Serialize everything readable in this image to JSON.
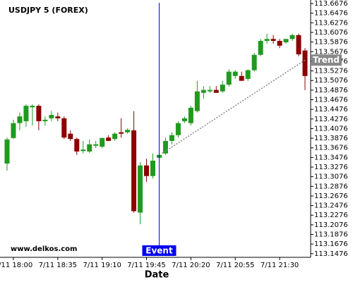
{
  "chart_data": {
    "type": "candlestick",
    "title": "USDJPY 5 (FOREX)",
    "x_label": "Date",
    "watermark": "www.delkos.com",
    "categories": [
      null,
      "7/11 18:00",
      null,
      null,
      null,
      null,
      null,
      null,
      "7/11 18:35",
      null,
      null,
      null,
      null,
      null,
      null,
      "7/11 19:10",
      null,
      null,
      null,
      null,
      null,
      null,
      "7/11 19:45",
      null,
      null,
      null,
      null,
      null,
      null,
      "7/11 20:20",
      null,
      null,
      null,
      null,
      null,
      null,
      "7/11 20:55",
      null,
      null,
      null,
      null,
      null,
      null,
      "7/11 21:30",
      null,
      null,
      null,
      null
    ],
    "open": [
      113.335,
      113.388,
      113.419,
      113.423,
      113.452,
      113.455,
      113.423,
      113.429,
      113.433,
      113.429,
      113.397,
      113.386,
      113.361,
      113.36,
      113.372,
      113.37,
      113.389,
      113.386,
      113.4,
      113.4,
      113.404,
      113.233,
      113.331,
      113.309,
      113.347,
      113.356,
      113.382,
      113.394,
      113.423,
      113.419,
      113.444,
      113.482,
      113.485,
      113.488,
      113.485,
      113.499,
      113.517,
      113.517,
      113.511,
      113.529,
      113.561,
      113.59,
      113.594,
      113.59,
      113.587,
      113.594,
      113.602,
      113.57
    ],
    "high": [
      113.389,
      113.426,
      113.441,
      113.458,
      113.458,
      113.458,
      113.433,
      113.444,
      113.441,
      113.433,
      113.404,
      113.389,
      113.382,
      113.385,
      113.382,
      113.389,
      113.394,
      113.4,
      113.429,
      113.408,
      113.444,
      113.338,
      113.345,
      113.356,
      113.356,
      113.389,
      113.4,
      113.423,
      113.433,
      113.455,
      113.507,
      113.496,
      113.496,
      113.496,
      113.507,
      113.531,
      113.529,
      113.526,
      113.531,
      113.565,
      113.594,
      113.605,
      113.602,
      113.594,
      113.594,
      113.605,
      113.605,
      113.575
    ],
    "low": [
      113.32,
      113.386,
      113.404,
      113.411,
      113.414,
      113.404,
      113.414,
      113.423,
      113.423,
      113.386,
      113.382,
      113.353,
      113.356,
      113.357,
      113.367,
      113.367,
      113.382,
      113.382,
      113.389,
      113.397,
      113.233,
      113.209,
      113.297,
      113.304,
      113.345,
      113.353,
      113.375,
      113.389,
      113.419,
      113.414,
      113.441,
      113.47,
      113.482,
      113.482,
      113.482,
      113.495,
      113.511,
      113.507,
      113.507,
      113.526,
      113.558,
      113.584,
      113.584,
      113.575,
      113.584,
      113.59,
      113.558,
      113.488
    ],
    "close": [
      113.385,
      113.419,
      113.433,
      113.455,
      113.455,
      113.423,
      113.426,
      113.436,
      113.429,
      113.389,
      113.386,
      113.36,
      113.364,
      113.375,
      113.375,
      113.388,
      113.382,
      113.397,
      113.397,
      113.405,
      113.236,
      113.331,
      113.309,
      113.341,
      113.353,
      113.382,
      113.394,
      113.419,
      113.429,
      113.451,
      113.485,
      113.488,
      113.488,
      113.482,
      113.499,
      113.526,
      113.526,
      113.507,
      113.529,
      113.561,
      113.59,
      113.594,
      113.59,
      113.58,
      113.594,
      113.602,
      113.562,
      113.517
    ],
    "up_color": "#1f9a1f",
    "down_color": "#8b0000",
    "ylim": [
      113.14,
      113.675
    ],
    "yticks": [
      113.1476,
      113.1676,
      113.1876,
      113.2076,
      113.2276,
      113.2476,
      113.2676,
      113.2876,
      113.3076,
      113.3276,
      113.3476,
      113.3676,
      113.3876,
      113.4076,
      113.4276,
      113.4476,
      113.4676,
      113.4876,
      113.5076,
      113.5276,
      113.5476,
      113.5676,
      113.5876,
      113.6076,
      113.6276,
      113.6476,
      113.6676
    ],
    "event": {
      "label": "Event",
      "index": 24,
      "color": "#0000ee"
    },
    "trend": {
      "label": "Trend",
      "values": [
        113.356,
        113.55
      ],
      "color": "#888888"
    }
  }
}
